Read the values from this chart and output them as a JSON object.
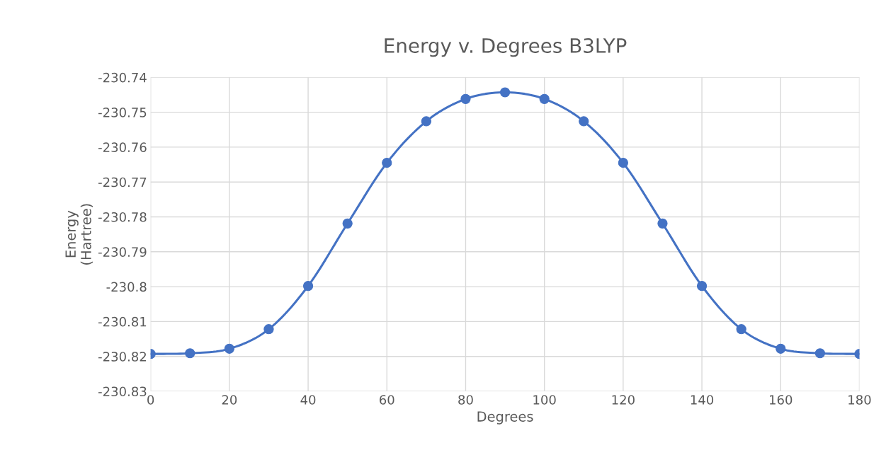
{
  "chart_data": {
    "type": "line",
    "title": "Energy v. Degrees B3LYP",
    "xlabel": "Degrees",
    "ylabel": "Energy\n(Hartree)",
    "x": [
      0,
      10,
      20,
      30,
      40,
      50,
      60,
      70,
      80,
      90,
      100,
      110,
      120,
      130,
      140,
      150,
      160,
      170,
      180
    ],
    "series": [
      {
        "color": "#4472c4",
        "values": [
          -230.8193,
          -230.8191,
          -230.8178,
          -230.8122,
          -230.7998,
          -230.7819,
          -230.7645,
          -230.7526,
          -230.7462,
          -230.7443,
          -230.7462,
          -230.7526,
          -230.7645,
          -230.7819,
          -230.7998,
          -230.8122,
          -230.8178,
          -230.8191,
          -230.8193
        ]
      }
    ],
    "xlim": [
      0,
      180
    ],
    "xticks": [
      0,
      20,
      40,
      60,
      80,
      100,
      120,
      140,
      160,
      180
    ],
    "ylim": [
      -230.83,
      -230.74
    ],
    "yticks": [
      -230.83,
      -230.82,
      -230.81,
      {
        "value": -230.8,
        "label": "-230.8"
      },
      -230.79,
      -230.78,
      -230.77,
      -230.76,
      -230.75,
      -230.74
    ],
    "grid": true,
    "marker": "circle",
    "line_style": "solid"
  }
}
